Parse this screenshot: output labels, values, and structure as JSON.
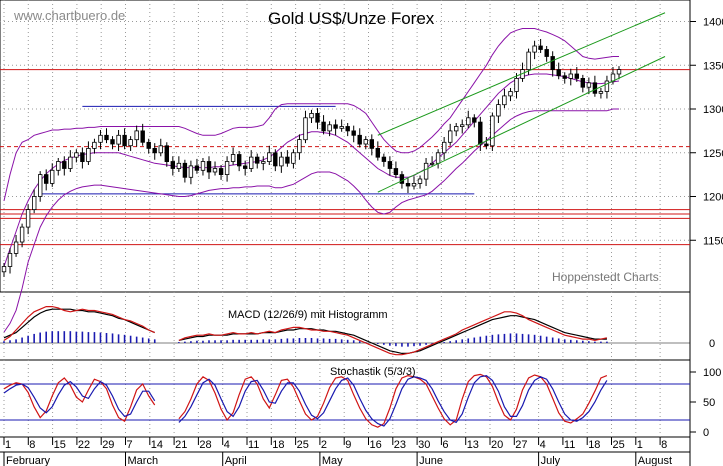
{
  "watermark": "www.chartbuero.de",
  "credit": "Hoppenstedt Charts",
  "chart_data": {
    "title": "Gold US$/Unze Forex",
    "type": "candlestick",
    "x_tick_labels": [
      "1",
      "8",
      "15",
      "22",
      "29",
      "7",
      "14",
      "21",
      "28",
      "4",
      "11",
      "18",
      "25",
      "2",
      "9",
      "16",
      "23",
      "30",
      "6",
      "13",
      "20",
      "27",
      "4",
      "11",
      "18",
      "25",
      "1",
      "8"
    ],
    "month_labels": [
      "February",
      "March",
      "April",
      "May",
      "June",
      "July",
      "August"
    ],
    "price_panel": {
      "ylim": [
        1100,
        1420
      ],
      "y_ticks": [
        1150,
        1200,
        1250,
        1300,
        1350,
        1400
      ],
      "close": [
        1120,
        1135,
        1148,
        1165,
        1185,
        1200,
        1225,
        1215,
        1230,
        1240,
        1232,
        1245,
        1250,
        1240,
        1255,
        1262,
        1270,
        1265,
        1260,
        1270,
        1258,
        1265,
        1275,
        1262,
        1255,
        1250,
        1258,
        1240,
        1232,
        1238,
        1222,
        1235,
        1230,
        1240,
        1228,
        1232,
        1225,
        1240,
        1248,
        1235,
        1232,
        1245,
        1238,
        1240,
        1250,
        1235,
        1245,
        1238,
        1250,
        1265,
        1290,
        1295,
        1285,
        1275,
        1282,
        1278,
        1280,
        1275,
        1270,
        1260,
        1265,
        1255,
        1245,
        1240,
        1232,
        1225,
        1215,
        1212,
        1215,
        1220,
        1238,
        1238,
        1250,
        1262,
        1275,
        1280,
        1282,
        1290,
        1285,
        1260,
        1258,
        1292,
        1305,
        1315,
        1320,
        1335,
        1345,
        1365,
        1372,
        1368,
        1360,
        1345,
        1338,
        1335,
        1340,
        1335,
        1325,
        1330,
        1318,
        1320,
        1332,
        1340,
        1345
      ],
      "upper_band": [
        1195,
        1225,
        1250,
        1262,
        1265,
        1270,
        1272,
        1274,
        1276,
        1276,
        1277,
        1277,
        1278,
        1278,
        1279,
        1279,
        1280,
        1280,
        1280,
        1280,
        1280,
        1280,
        1280,
        1280,
        1280,
        1280,
        1280,
        1280,
        1280,
        1280,
        1278,
        1275,
        1272,
        1270,
        1270,
        1270,
        1272,
        1275,
        1278,
        1279,
        1279,
        1279,
        1280,
        1282,
        1290,
        1300,
        1305,
        1306,
        1306,
        1306,
        1306,
        1306,
        1306,
        1306,
        1306,
        1306,
        1306,
        1306,
        1304,
        1300,
        1295,
        1285,
        1275,
        1265,
        1258,
        1252,
        1250,
        1250,
        1252,
        1256,
        1262,
        1268,
        1275,
        1283,
        1290,
        1300,
        1310,
        1320,
        1330,
        1340,
        1350,
        1362,
        1372,
        1380,
        1387,
        1390,
        1392,
        1392,
        1392,
        1390,
        1388,
        1385,
        1382,
        1378,
        1372,
        1366,
        1360,
        1358,
        1357,
        1358,
        1359,
        1360,
        1360
      ],
      "middle_band": [
        1120,
        1140,
        1160,
        1180,
        1195,
        1208,
        1218,
        1226,
        1232,
        1237,
        1241,
        1244,
        1246,
        1248,
        1249,
        1250,
        1250,
        1250,
        1250,
        1250,
        1248,
        1246,
        1244,
        1242,
        1240,
        1238,
        1237,
        1236,
        1235,
        1234,
        1233,
        1233,
        1233,
        1233,
        1233,
        1234,
        1234,
        1235,
        1236,
        1237,
        1238,
        1239,
        1240,
        1242,
        1245,
        1250,
        1256,
        1262,
        1266,
        1270,
        1272,
        1274,
        1274,
        1273,
        1272,
        1270,
        1266,
        1262,
        1256,
        1250,
        1244,
        1238,
        1232,
        1228,
        1224,
        1222,
        1222,
        1222,
        1224,
        1228,
        1232,
        1238,
        1244,
        1250,
        1256,
        1262,
        1270,
        1278,
        1286,
        1294,
        1302,
        1310,
        1318,
        1324,
        1330,
        1334,
        1337,
        1339,
        1340,
        1340,
        1340,
        1339,
        1338,
        1337,
        1335,
        1333,
        1331,
        1330,
        1329,
        1329,
        1330,
        1331,
        1332
      ],
      "lower_band": [
        1045,
        1055,
        1070,
        1095,
        1125,
        1145,
        1165,
        1178,
        1188,
        1196,
        1202,
        1206,
        1209,
        1211,
        1212,
        1213,
        1213,
        1212,
        1211,
        1210,
        1209,
        1208,
        1207,
        1206,
        1205,
        1204,
        1203,
        1202,
        1201,
        1200,
        1200,
        1201,
        1203,
        1205,
        1207,
        1208,
        1209,
        1209,
        1210,
        1210,
        1211,
        1211,
        1212,
        1212,
        1212,
        1210,
        1210,
        1212,
        1214,
        1218,
        1222,
        1226,
        1228,
        1228,
        1228,
        1226,
        1222,
        1218,
        1212,
        1205,
        1196,
        1188,
        1182,
        1180,
        1182,
        1188,
        1193,
        1196,
        1198,
        1200,
        1202,
        1206,
        1212,
        1218,
        1225,
        1232,
        1238,
        1245,
        1252,
        1258,
        1264,
        1270,
        1276,
        1282,
        1288,
        1292,
        1295,
        1297,
        1298,
        1298,
        1298,
        1298,
        1298,
        1298,
        1298,
        1298,
        1298,
        1298,
        1298,
        1298,
        1298,
        1300,
        1300
      ],
      "horizontal_levels_red_solid": [
        1345,
        1185,
        1180,
        1175,
        1145
      ],
      "horizontal_levels_red_dashed": [
        1257
      ],
      "horizontal_levels_blue": [
        1303,
        1203
      ],
      "trend_channel_green": [
        [
          62,
          1270,
          103,
          1410
        ],
        [
          62,
          1205,
          103,
          1360
        ]
      ]
    },
    "macd_panel": {
      "label": "MACD (12/26/9) mit Histogramm",
      "y_ticks": [
        0
      ],
      "macd": [
        4,
        6,
        8,
        12,
        16,
        20,
        23,
        25,
        26,
        26,
        26,
        26,
        25,
        25,
        24,
        24,
        23,
        22,
        21,
        19,
        18,
        16,
        14,
        12,
        10,
        8,
        null,
        null,
        null,
        2,
        3,
        4,
        5,
        5,
        6,
        6,
        6,
        6,
        7,
        7,
        7,
        7,
        7,
        8,
        8,
        8,
        9,
        10,
        10,
        11,
        11,
        11,
        10,
        10,
        9,
        9,
        8,
        7,
        6,
        4,
        2,
        0,
        -2,
        -4,
        -6,
        -7,
        -8,
        -8,
        -7,
        -6,
        -4,
        -2,
        0,
        2,
        4,
        6,
        8,
        10,
        12,
        14,
        16,
        18,
        19,
        20,
        21,
        21,
        20,
        19,
        18,
        16,
        14,
        12,
        10,
        8,
        7,
        6,
        5,
        4,
        3,
        3,
        3
      ],
      "signal": [
        2,
        5,
        10,
        15,
        20,
        24,
        26,
        28,
        28,
        27,
        25,
        24,
        25,
        26,
        25,
        25,
        24,
        23,
        22,
        20,
        18,
        17,
        15,
        13,
        10,
        8,
        null,
        null,
        null,
        2,
        4,
        5,
        6,
        6,
        7,
        6,
        6,
        7,
        8,
        7,
        7,
        8,
        7,
        8,
        9,
        8,
        10,
        11,
        12,
        12,
        11,
        10,
        10,
        9,
        9,
        8,
        7,
        6,
        4,
        2,
        0,
        -2,
        -4,
        -6,
        -8,
        -9,
        -9,
        -8,
        -7,
        -5,
        -3,
        -1,
        1,
        3,
        5,
        7,
        10,
        12,
        14,
        16,
        18,
        20,
        22,
        24,
        24,
        23,
        21,
        18,
        16,
        14,
        12,
        10,
        8,
        6,
        5,
        4,
        3,
        3,
        2,
        3,
        4
      ]
    },
    "stochastic_panel": {
      "label": "Stochastik (5/3/3)",
      "y_ticks": [
        0,
        50,
        100
      ],
      "reference_levels": [
        80,
        20
      ],
      "k": [
        72,
        78,
        82,
        80,
        66,
        42,
        24,
        35,
        60,
        82,
        90,
        78,
        58,
        50,
        70,
        88,
        84,
        72,
        45,
        24,
        18,
        42,
        70,
        80,
        60,
        45,
        null,
        null,
        null,
        22,
        34,
        55,
        80,
        92,
        86,
        65,
        38,
        20,
        32,
        62,
        88,
        92,
        80,
        55,
        40,
        62,
        86,
        88,
        75,
        52,
        30,
        20,
        26,
        48,
        74,
        90,
        92,
        86,
        62,
        40,
        22,
        12,
        8,
        14,
        40,
        72,
        90,
        94,
        92,
        88,
        80,
        60,
        40,
        22,
        12,
        20,
        55,
        84,
        94,
        96,
        92,
        76,
        50,
        28,
        20,
        38,
        70,
        90,
        95,
        92,
        80,
        56,
        32,
        18,
        15,
        22,
        30,
        48,
        68,
        90,
        94
      ],
      "d": [
        65,
        72,
        78,
        80,
        74,
        58,
        40,
        32,
        42,
        62,
        78,
        84,
        75,
        60,
        56,
        72,
        84,
        78,
        60,
        38,
        26,
        30,
        50,
        68,
        68,
        52,
        null,
        null,
        null,
        16,
        26,
        42,
        62,
        82,
        88,
        78,
        55,
        34,
        26,
        42,
        68,
        84,
        86,
        70,
        50,
        48,
        68,
        82,
        82,
        68,
        46,
        28,
        22,
        32,
        52,
        72,
        86,
        90,
        78,
        56,
        36,
        22,
        14,
        10,
        22,
        46,
        72,
        88,
        92,
        90,
        86,
        72,
        52,
        34,
        20,
        16,
        30,
        58,
        82,
        92,
        94,
        86,
        68,
        42,
        26,
        26,
        44,
        70,
        86,
        92,
        88,
        72,
        50,
        30,
        20,
        18,
        24,
        34,
        50,
        70,
        86
      ]
    }
  }
}
